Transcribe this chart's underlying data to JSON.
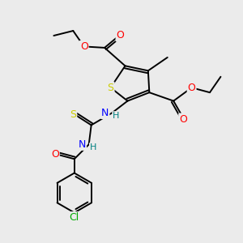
{
  "bg_color": "#ebebeb",
  "atom_colors": {
    "S": "#cccc00",
    "O": "#ff0000",
    "N": "#0000ff",
    "Cl": "#00aa00",
    "C": "#000000",
    "H": "#008080"
  },
  "bond_color": "#000000",
  "line_width": 1.4,
  "figsize": [
    3.0,
    3.0
  ],
  "dpi": 100
}
